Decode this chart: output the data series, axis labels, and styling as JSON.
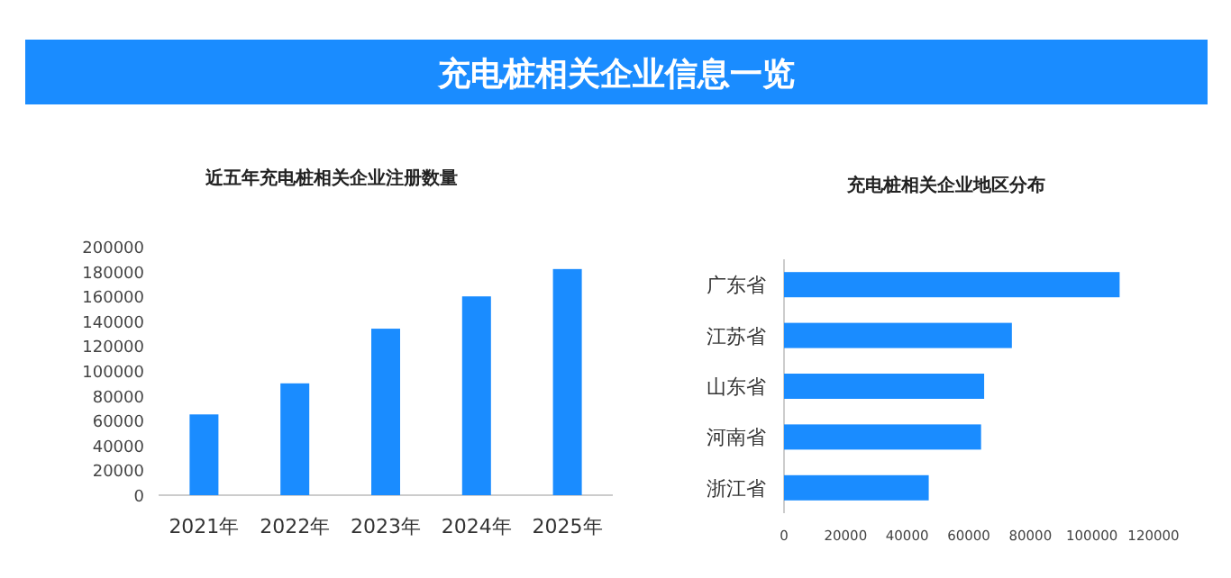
{
  "chart_data": [
    {
      "type": "other",
      "title": "充电桩相关企业信息一览"
    },
    {
      "type": "bar",
      "title": "近五年充电桩相关企业注册数量",
      "categories": [
        "2021年",
        "2022年",
        "2023年",
        "2024年",
        "2025年"
      ],
      "values": [
        65000,
        90000,
        134000,
        160000,
        182000
      ],
      "color": "#1a8cff",
      "ylim": [
        0,
        200000
      ],
      "yticks": [
        0,
        20000,
        40000,
        60000,
        80000,
        100000,
        120000,
        140000,
        160000,
        180000,
        200000
      ]
    },
    {
      "type": "bar",
      "orientation": "horizontal",
      "title": "充电桩相关企业地区分布",
      "categories": [
        "广东省",
        "江苏省",
        "山东省",
        "河南省",
        "浙江省"
      ],
      "values": [
        109000,
        74000,
        65000,
        64000,
        47000
      ],
      "color": "#1a8cff",
      "xlim": [
        0,
        120000
      ],
      "xticks": [
        0,
        20000,
        40000,
        60000,
        80000,
        100000,
        120000
      ]
    }
  ]
}
